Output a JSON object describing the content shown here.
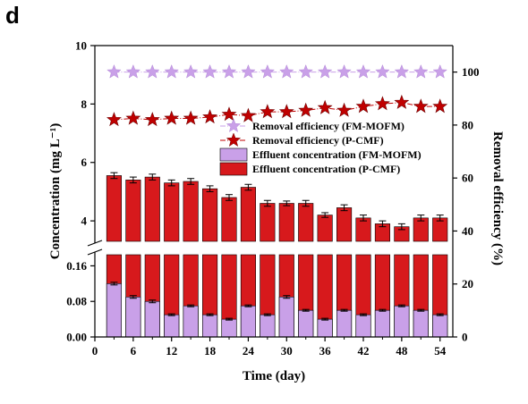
{
  "panel_label": "d",
  "chart_data": {
    "type": "bar+scatter",
    "x": [
      3,
      6,
      9,
      12,
      15,
      18,
      21,
      24,
      27,
      30,
      33,
      36,
      39,
      42,
      45,
      48,
      51,
      54
    ],
    "xlabel": "Time (day)",
    "xlim": [
      0,
      56
    ],
    "xticks": [
      "0",
      "6",
      "12",
      "18",
      "24",
      "30",
      "36",
      "42",
      "48",
      "54"
    ],
    "y_left_label": "Concentration (mg L⁻¹)",
    "y_left_upper_ticks": [
      "4",
      "6",
      "8",
      "10"
    ],
    "y_left_lower_ticks": [
      "0.00",
      "0.08",
      "0.16"
    ],
    "y_left_upper_range": [
      3.3,
      10
    ],
    "y_left_lower_range": [
      0,
      0.185
    ],
    "y_right_label": "Removal efficiency (%)",
    "y_right_ticks": [
      "0",
      "20",
      "40",
      "60",
      "80",
      "100"
    ],
    "y_right_range": [
      0,
      110
    ],
    "series": [
      {
        "name": "Effluent concentration (P-CMF)",
        "kind": "bar",
        "axis": "left",
        "color": "#d7191c",
        "values": [
          5.55,
          5.4,
          5.5,
          5.3,
          5.35,
          5.1,
          4.8,
          5.15,
          4.6,
          4.6,
          4.6,
          4.2,
          4.45,
          4.1,
          3.9,
          3.8,
          4.1,
          4.1
        ],
        "errors": [
          0.1,
          0.1,
          0.1,
          0.1,
          0.1,
          0.1,
          0.1,
          0.1,
          0.1,
          0.08,
          0.1,
          0.08,
          0.1,
          0.1,
          0.1,
          0.1,
          0.1,
          0.1
        ]
      },
      {
        "name": "Effluent concentration (FM-MOFM)",
        "kind": "bar",
        "axis": "left",
        "color": "#c9a0e8",
        "values": [
          0.12,
          0.09,
          0.08,
          0.05,
          0.07,
          0.05,
          0.04,
          0.07,
          0.05,
          0.09,
          0.06,
          0.04,
          0.06,
          0.05,
          0.06,
          0.07,
          0.06,
          0.05
        ],
        "errors": [
          0.003,
          0.003,
          0.003,
          0.002,
          0.002,
          0.002,
          0.002,
          0.002,
          0.002,
          0.003,
          0.002,
          0.002,
          0.002,
          0.002,
          0.002,
          0.002,
          0.002,
          0.002
        ]
      },
      {
        "name": "Removal efficiency (FM-MOFM)",
        "kind": "star",
        "axis": "right",
        "color": "#c9a0e8",
        "values": [
          100,
          100,
          100,
          100,
          100,
          100,
          100,
          100,
          100,
          100,
          100,
          100,
          100,
          100,
          100,
          100,
          100,
          100
        ]
      },
      {
        "name": "Removal efficiency (P-CMF)",
        "kind": "star",
        "axis": "right",
        "color": "#c00000",
        "values": [
          82,
          82.5,
          82,
          82.5,
          82.5,
          83,
          84,
          83.5,
          85,
          85,
          85.5,
          86.5,
          85.5,
          87,
          88,
          88.5,
          87,
          87
        ]
      }
    ],
    "legend": [
      "Removal efficiency (FM-MOFM)",
      "Removal efficiency (P-CMF)",
      "Effluent concentration (FM-MOFM)",
      "Effluent concentration (P-CMF)"
    ],
    "legend_position": "center-right",
    "grid": false
  }
}
